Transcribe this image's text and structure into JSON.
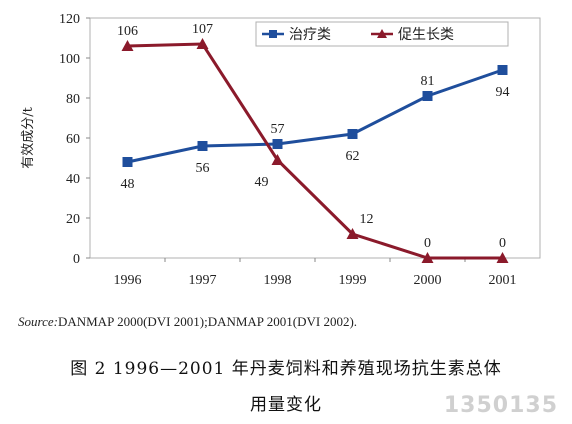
{
  "chart_data": {
    "type": "line",
    "x": [
      "1996",
      "1997",
      "1998",
      "1999",
      "2000",
      "2001"
    ],
    "series": [
      {
        "name": "治疗类",
        "values": [
          48,
          56,
          57,
          62,
          81,
          94
        ],
        "color": "#1f4e9c",
        "marker": "square"
      },
      {
        "name": "促生长类",
        "values": [
          106,
          107,
          49,
          12,
          0,
          0
        ],
        "color": "#8b1a2b",
        "marker": "triangle"
      }
    ],
    "ylabel": "有效成分/t",
    "ylim": [
      0,
      120
    ],
    "yticks": [
      0,
      20,
      40,
      60,
      80,
      100,
      120
    ],
    "grid": false,
    "legend": "top-right"
  },
  "source": {
    "key": "Source:",
    "text": "DANMAP 2000(DVI 2001);DANMAP 2001(DVI 2002)."
  },
  "caption": {
    "line1": "图 2   1996—2001 年丹麦饲料和养殖现场抗生素总体",
    "line2": "用量变化"
  },
  "watermark": "1350135"
}
